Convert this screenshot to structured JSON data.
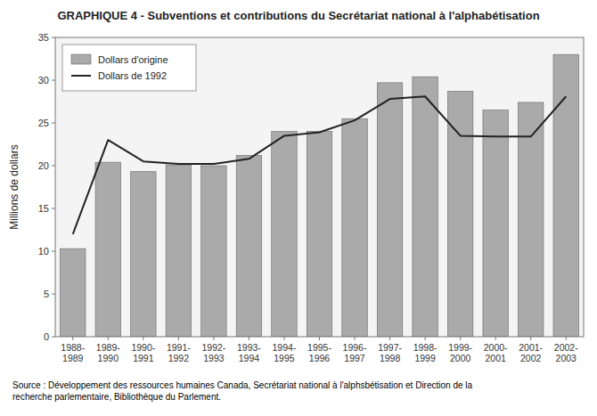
{
  "chart_data": {
    "type": "bar",
    "title": "GRAPHIQUE 4 - Subventions et contributions du Secrétariat national à l'alphabétisation",
    "ylabel": "Millions de dollars",
    "source": "Source : Développement des ressources humaines Canada, Secrétariat national à l'alphsbétisation et Direction de la\nrecherche parlementaire, Bibliothèque du Parlement.",
    "categories": [
      "1988-\n1989",
      "1989-\n1990",
      "1990-\n1991",
      "1991-\n1992",
      "1992-\n1993",
      "1993-\n1994",
      "1994-\n1995",
      "1995-\n1996",
      "1996-\n1997",
      "1997-\n1998",
      "1998-\n1999",
      "1999-\n2000",
      "2000-\n2001",
      "2001-\n2002",
      "2002-\n2003"
    ],
    "series": [
      {
        "name": "Dollars d'origine",
        "type": "bar",
        "color": "#aaaaaa",
        "values": [
          10.3,
          20.4,
          19.3,
          20.1,
          20.0,
          21.2,
          24.0,
          24.0,
          25.5,
          29.7,
          30.4,
          28.7,
          26.5,
          27.4,
          33.0
        ]
      },
      {
        "name": "Dollars de 1992",
        "type": "line",
        "color": "#222222",
        "values": [
          12.0,
          23.0,
          20.5,
          20.2,
          20.2,
          20.8,
          23.5,
          23.9,
          25.3,
          27.8,
          28.1,
          23.5,
          23.4,
          23.4,
          28.1
        ]
      }
    ],
    "ylim": [
      0,
      35
    ],
    "yticks": [
      0,
      5,
      10,
      15,
      20,
      25,
      30,
      35
    ],
    "grid": false,
    "legend": "upper left"
  }
}
